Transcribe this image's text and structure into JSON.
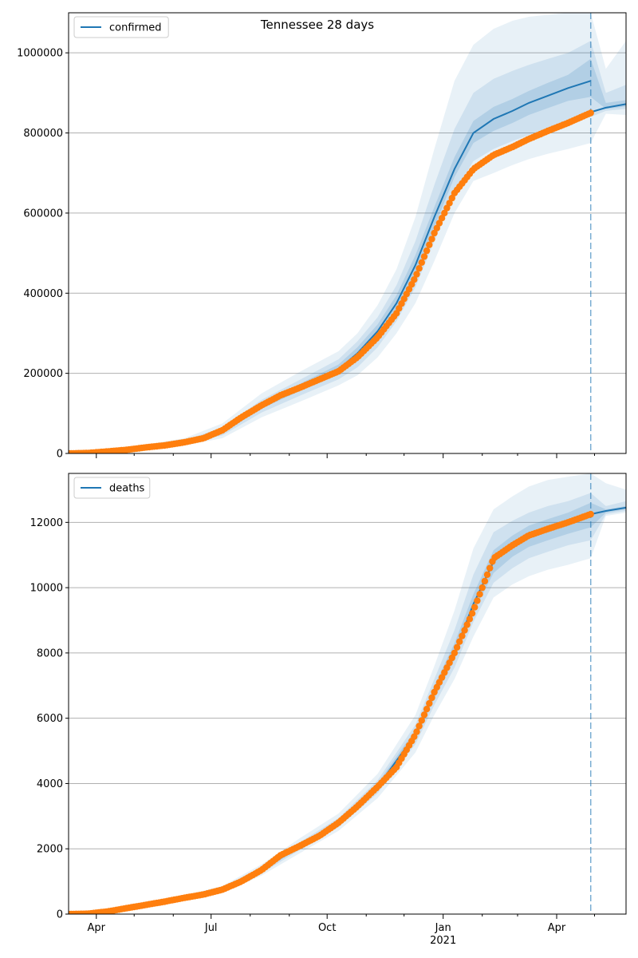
{
  "title": "Tennessee 28 days",
  "x_tick_labels": [
    "Apr",
    "Jul",
    "Oct",
    "Jan",
    "Apr"
  ],
  "x_year_label": "2021",
  "colors": {
    "model": "#1f77b4",
    "observed": "#ff7f0e",
    "band": "#1f77b4",
    "grid": "#b0b0b0",
    "forecast_line": "#1f77b4"
  },
  "chart_data": [
    {
      "type": "line",
      "legend": "confirmed",
      "legend_position": "top-left",
      "grid": true,
      "x_range": [
        "2020-03-10",
        "2021-05-26"
      ],
      "ylim": [
        0,
        1100000
      ],
      "y_ticks": [
        0,
        200000,
        400000,
        600000,
        800000,
        1000000
      ],
      "y_tick_labels": [
        "0",
        "200000",
        "400000",
        "600000",
        "800000",
        "1000000"
      ],
      "forecast_start": "2021-04-28",
      "observed_marker": "orange-dot",
      "observed": {
        "x": [
          "2020-03-10",
          "2020-03-25",
          "2020-04-10",
          "2020-04-25",
          "2020-05-10",
          "2020-05-25",
          "2020-06-10",
          "2020-06-25",
          "2020-07-10",
          "2020-07-25",
          "2020-08-10",
          "2020-08-25",
          "2020-09-10",
          "2020-09-25",
          "2020-10-10",
          "2020-10-25",
          "2020-11-10",
          "2020-11-25",
          "2020-12-10",
          "2020-12-25",
          "2021-01-10",
          "2021-01-25",
          "2021-02-10",
          "2021-02-25",
          "2021-03-10",
          "2021-03-25",
          "2021-04-10",
          "2021-04-28"
        ],
        "y": [
          0,
          1000,
          5000,
          9000,
          15000,
          20000,
          28000,
          38000,
          58000,
          90000,
          120000,
          145000,
          165000,
          185000,
          205000,
          240000,
          290000,
          350000,
          440000,
          550000,
          650000,
          710000,
          745000,
          765000,
          785000,
          805000,
          825000,
          850000
        ]
      },
      "model": {
        "x": [
          "2020-03-10",
          "2020-04-10",
          "2020-05-10",
          "2020-06-10",
          "2020-07-10",
          "2020-08-10",
          "2020-09-10",
          "2020-10-10",
          "2020-10-25",
          "2020-11-10",
          "2020-11-25",
          "2020-12-10",
          "2020-12-25",
          "2021-01-10",
          "2021-01-25",
          "2021-02-10",
          "2021-02-25",
          "2021-03-10",
          "2021-03-25",
          "2021-04-10",
          "2021-04-28"
        ],
        "y": [
          0,
          5000,
          15000,
          28000,
          55000,
          118000,
          165000,
          210000,
          250000,
          305000,
          375000,
          470000,
          590000,
          710000,
          800000,
          835000,
          855000,
          875000,
          893000,
          912000,
          930000
        ]
      },
      "projection": {
        "x": [
          "2021-04-28",
          "2021-05-10",
          "2021-05-26"
        ],
        "y": [
          852000,
          863000,
          872000
        ]
      },
      "bands": [
        {
          "x": [
            "2020-03-10",
            "2020-04-10",
            "2020-05-10",
            "2020-06-10",
            "2020-07-10",
            "2020-08-10",
            "2020-09-10",
            "2020-10-10",
            "2020-10-25",
            "2020-11-10",
            "2020-11-25",
            "2020-12-10",
            "2020-12-25",
            "2021-01-10",
            "2021-01-25",
            "2021-02-10",
            "2021-02-25",
            "2021-03-10",
            "2021-03-25",
            "2021-04-10",
            "2021-04-28",
            "2021-05-10",
            "2021-05-26"
          ],
          "lower": [
            0,
            3000,
            11000,
            20000,
            38000,
            90000,
            130000,
            170000,
            195000,
            240000,
            300000,
            375000,
            480000,
            600000,
            680000,
            700000,
            720000,
            735000,
            748000,
            760000,
            775000,
            848000,
            845000
          ],
          "upper": [
            0,
            8000,
            22000,
            38000,
            75000,
            150000,
            205000,
            255000,
            300000,
            370000,
            460000,
            590000,
            760000,
            930000,
            1020000,
            1060000,
            1080000,
            1090000,
            1095000,
            1100000,
            1100000,
            960000,
            1030000
          ]
        },
        {
          "x": [
            "2020-03-10",
            "2020-04-10",
            "2020-05-10",
            "2020-06-10",
            "2020-07-10",
            "2020-08-10",
            "2020-09-10",
            "2020-10-10",
            "2020-10-25",
            "2020-11-10",
            "2020-11-25",
            "2020-12-10",
            "2020-12-25",
            "2021-01-10",
            "2021-01-25",
            "2021-02-10",
            "2021-02-25",
            "2021-03-10",
            "2021-03-25",
            "2021-04-10",
            "2021-04-28",
            "2021-05-10",
            "2021-05-26"
          ],
          "lower": [
            0,
            3500,
            12500,
            23000,
            45000,
            102000,
            145000,
            185000,
            215000,
            265000,
            330000,
            415000,
            530000,
            650000,
            730000,
            760000,
            780000,
            795000,
            810000,
            825000,
            840000,
            855000,
            860000
          ],
          "upper": [
            0,
            6500,
            18500,
            33000,
            65000,
            134000,
            185000,
            235000,
            280000,
            340000,
            420000,
            530000,
            670000,
            810000,
            900000,
            935000,
            955000,
            970000,
            985000,
            1000000,
            1030000,
            900000,
            920000
          ]
        },
        {
          "x": [
            "2020-03-10",
            "2020-04-10",
            "2020-05-10",
            "2020-06-10",
            "2020-07-10",
            "2020-08-10",
            "2020-09-10",
            "2020-10-10",
            "2020-10-25",
            "2020-11-10",
            "2020-11-25",
            "2020-12-10",
            "2020-12-25",
            "2021-01-10",
            "2021-01-25",
            "2021-02-10",
            "2021-02-25",
            "2021-03-10",
            "2021-03-25",
            "2021-04-10",
            "2021-04-28",
            "2021-05-10",
            "2021-05-26"
          ],
          "lower": [
            0,
            4200,
            14000,
            26000,
            50000,
            112000,
            157000,
            200000,
            235000,
            288000,
            355000,
            445000,
            565000,
            690000,
            775000,
            805000,
            825000,
            845000,
            862000,
            880000,
            890000,
            860000,
            866000
          ],
          "upper": [
            0,
            5800,
            16500,
            30000,
            60000,
            126000,
            175000,
            222000,
            265000,
            322000,
            395000,
            495000,
            615000,
            740000,
            830000,
            865000,
            885000,
            905000,
            925000,
            945000,
            985000,
            875000,
            882000
          ]
        }
      ]
    },
    {
      "type": "line",
      "legend": "deaths",
      "legend_position": "top-left",
      "grid": true,
      "x_range": [
        "2020-03-10",
        "2021-05-26"
      ],
      "ylim": [
        0,
        13500
      ],
      "y_ticks": [
        0,
        2000,
        4000,
        6000,
        8000,
        10000,
        12000
      ],
      "y_tick_labels": [
        "0",
        "2000",
        "4000",
        "6000",
        "8000",
        "10000",
        "12000"
      ],
      "forecast_start": "2021-04-28",
      "observed_marker": "orange-dot",
      "observed": {
        "x": [
          "2020-03-10",
          "2020-03-25",
          "2020-04-10",
          "2020-04-25",
          "2020-05-10",
          "2020-05-25",
          "2020-06-10",
          "2020-06-25",
          "2020-07-10",
          "2020-07-25",
          "2020-08-10",
          "2020-08-25",
          "2020-09-10",
          "2020-09-25",
          "2020-10-10",
          "2020-10-25",
          "2020-11-10",
          "2020-11-25",
          "2020-12-10",
          "2020-12-25",
          "2021-01-10",
          "2021-01-25",
          "2021-02-10",
          "2021-02-25",
          "2021-03-10",
          "2021-03-25",
          "2021-04-10",
          "2021-04-28"
        ],
        "y": [
          0,
          10,
          80,
          180,
          280,
          380,
          500,
          600,
          750,
          1000,
          1350,
          1800,
          2100,
          2400,
          2800,
          3300,
          3900,
          4500,
          5500,
          6800,
          8000,
          9300,
          10900,
          11300,
          11600,
          11800,
          12000,
          12250
        ]
      },
      "model": {
        "x": [
          "2020-03-10",
          "2020-04-10",
          "2020-05-10",
          "2020-06-10",
          "2020-07-10",
          "2020-08-10",
          "2020-09-10",
          "2020-10-10",
          "2020-11-10",
          "2020-12-10",
          "2020-12-25",
          "2021-01-10",
          "2021-01-25",
          "2021-02-10",
          "2021-02-25",
          "2021-03-10",
          "2021-03-25",
          "2021-04-10",
          "2021-04-28"
        ],
        "y": [
          0,
          80,
          280,
          500,
          750,
          1350,
          2100,
          2800,
          3900,
          5500,
          6800,
          8000,
          9500,
          10800,
          11300,
          11600,
          11800,
          12000,
          12250
        ]
      },
      "projection": {
        "x": [
          "2021-04-28",
          "2021-05-10",
          "2021-05-26"
        ],
        "y": [
          12250,
          12350,
          12450
        ]
      },
      "bands": [
        {
          "x": [
            "2020-03-10",
            "2020-04-10",
            "2020-05-10",
            "2020-06-10",
            "2020-07-10",
            "2020-08-10",
            "2020-09-10",
            "2020-10-10",
            "2020-11-10",
            "2020-12-10",
            "2020-12-25",
            "2021-01-10",
            "2021-01-25",
            "2021-02-10",
            "2021-02-25",
            "2021-03-10",
            "2021-03-25",
            "2021-04-10",
            "2021-04-28",
            "2021-05-10",
            "2021-05-26"
          ],
          "lower": [
            0,
            50,
            220,
            420,
            640,
            1180,
            1880,
            2550,
            3550,
            4950,
            6100,
            7200,
            8500,
            9700,
            10100,
            10350,
            10550,
            10700,
            10900,
            12200,
            12300
          ],
          "upper": [
            0,
            110,
            340,
            580,
            860,
            1520,
            2340,
            3080,
            4300,
            6100,
            7600,
            9300,
            11200,
            12400,
            12800,
            13100,
            13300,
            13400,
            13500,
            13200,
            13000
          ]
        },
        {
          "x": [
            "2020-03-10",
            "2020-04-10",
            "2020-05-10",
            "2020-06-10",
            "2020-07-10",
            "2020-08-10",
            "2020-09-10",
            "2020-10-10",
            "2020-11-10",
            "2020-12-10",
            "2020-12-25",
            "2021-01-10",
            "2021-01-25",
            "2021-02-10",
            "2021-02-25",
            "2021-03-10",
            "2021-03-25",
            "2021-04-10",
            "2021-04-28",
            "2021-05-10",
            "2021-05-26"
          ],
          "lower": [
            0,
            60,
            240,
            450,
            680,
            1250,
            1980,
            2660,
            3700,
            5200,
            6400,
            7550,
            8950,
            10150,
            10600,
            10900,
            11100,
            11300,
            11450,
            12250,
            12350
          ],
          "upper": [
            0,
            100,
            320,
            550,
            820,
            1450,
            2220,
            2940,
            4100,
            5800,
            7200,
            8700,
            10400,
            11700,
            12050,
            12300,
            12500,
            12650,
            12900,
            12500,
            12650
          ]
        },
        {
          "x": [
            "2020-03-10",
            "2020-04-10",
            "2020-05-10",
            "2020-06-10",
            "2020-07-10",
            "2020-08-10",
            "2020-09-10",
            "2020-10-10",
            "2020-11-10",
            "2020-12-10",
            "2020-12-25",
            "2021-01-10",
            "2021-01-25",
            "2021-02-10",
            "2021-02-25",
            "2021-03-10",
            "2021-03-25",
            "2021-04-10",
            "2021-04-28",
            "2021-05-10",
            "2021-05-26"
          ],
          "lower": [
            0,
            70,
            260,
            475,
            715,
            1300,
            2040,
            2730,
            3800,
            5350,
            6600,
            7800,
            9250,
            10450,
            10950,
            11250,
            11450,
            11650,
            11850,
            12300,
            12400
          ],
          "upper": [
            0,
            90,
            300,
            525,
            785,
            1400,
            2160,
            2870,
            4000,
            5650,
            7000,
            8300,
            9800,
            11150,
            11600,
            11900,
            12100,
            12300,
            12600,
            12400,
            12500
          ]
        }
      ]
    }
  ]
}
